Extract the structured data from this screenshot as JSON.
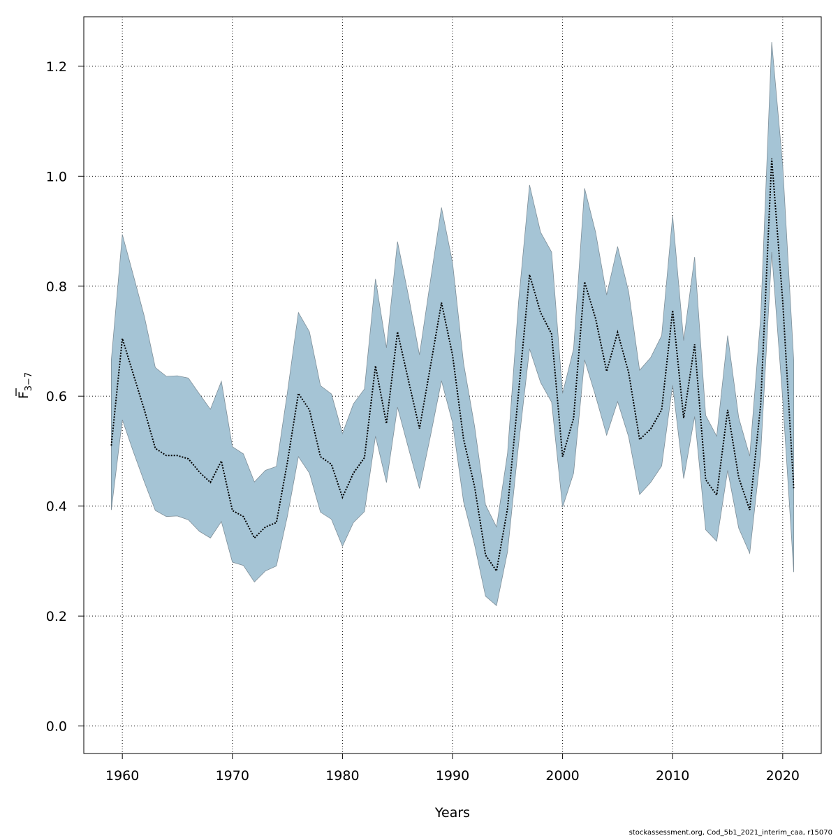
{
  "chart_data": {
    "type": "line",
    "xlabel": "Years",
    "ylabel_main": "F",
    "ylabel_sub": "3−7",
    "xlim": [
      1956.5,
      2023.5
    ],
    "ylim": [
      -0.05,
      1.29
    ],
    "x_ticks": [
      1960,
      1970,
      1980,
      1990,
      2000,
      2010,
      2020
    ],
    "y_ticks": [
      0.0,
      0.2,
      0.4,
      0.6,
      0.8,
      1.0,
      1.2
    ],
    "y_tick_labels": [
      "0.0",
      "0.2",
      "0.4",
      "0.6",
      "0.8",
      "1.0",
      "1.2"
    ],
    "grid": true,
    "colors": {
      "band_fill": "#a5c4d5",
      "band_stroke": "#7f8f99",
      "line": "#000000",
      "grid": "#000000"
    },
    "series": [
      {
        "x": [
          1959,
          1960,
          1961,
          1962,
          1963,
          1964,
          1965,
          1966,
          1967,
          1968,
          1969,
          1970,
          1971,
          1972,
          1973,
          1974,
          1975,
          1976,
          1977,
          1978,
          1979,
          1980,
          1981,
          1982,
          1983,
          1984,
          1985,
          1986,
          1987,
          1988,
          1989,
          1990,
          1991,
          1992,
          1993,
          1994,
          1995,
          1996,
          1997,
          1998,
          1999,
          2000,
          2001,
          2002,
          2003,
          2004,
          2005,
          2006,
          2007,
          2008,
          2009,
          2010,
          2011,
          2012,
          2013,
          2014,
          2015,
          2016,
          2017,
          2018,
          2019,
          2020,
          2021
        ],
        "estimate": [
          0.51,
          0.705,
          0.64,
          0.575,
          0.505,
          0.492,
          0.492,
          0.486,
          0.462,
          0.443,
          0.482,
          0.392,
          0.381,
          0.342,
          0.362,
          0.37,
          0.48,
          0.605,
          0.575,
          0.49,
          0.476,
          0.416,
          0.46,
          0.488,
          0.655,
          0.55,
          0.717,
          0.628,
          0.541,
          0.655,
          0.77,
          0.675,
          0.522,
          0.436,
          0.311,
          0.282,
          0.396,
          0.607,
          0.821,
          0.752,
          0.713,
          0.49,
          0.56,
          0.808,
          0.741,
          0.645,
          0.716,
          0.643,
          0.521,
          0.54,
          0.575,
          0.756,
          0.56,
          0.694,
          0.448,
          0.42,
          0.575,
          0.452,
          0.393,
          0.585,
          1.032,
          0.773,
          0.432
        ],
        "lower": [
          0.393,
          0.557,
          0.499,
          0.444,
          0.392,
          0.381,
          0.382,
          0.375,
          0.354,
          0.342,
          0.372,
          0.298,
          0.292,
          0.262,
          0.282,
          0.291,
          0.382,
          0.49,
          0.46,
          0.389,
          0.376,
          0.327,
          0.37,
          0.39,
          0.527,
          0.443,
          0.58,
          0.505,
          0.432,
          0.528,
          0.628,
          0.552,
          0.408,
          0.33,
          0.236,
          0.219,
          0.317,
          0.512,
          0.686,
          0.625,
          0.589,
          0.398,
          0.46,
          0.666,
          0.6,
          0.529,
          0.59,
          0.526,
          0.421,
          0.443,
          0.473,
          0.62,
          0.45,
          0.563,
          0.357,
          0.336,
          0.465,
          0.36,
          0.314,
          0.495,
          0.862,
          0.595,
          0.28
        ],
        "upper": [
          0.666,
          0.894,
          0.82,
          0.745,
          0.652,
          0.636,
          0.637,
          0.633,
          0.604,
          0.576,
          0.627,
          0.508,
          0.495,
          0.444,
          0.465,
          0.472,
          0.607,
          0.752,
          0.717,
          0.619,
          0.604,
          0.532,
          0.586,
          0.613,
          0.813,
          0.688,
          0.881,
          0.782,
          0.675,
          0.811,
          0.943,
          0.843,
          0.66,
          0.546,
          0.402,
          0.362,
          0.496,
          0.772,
          0.984,
          0.898,
          0.862,
          0.605,
          0.686,
          0.978,
          0.898,
          0.784,
          0.872,
          0.79,
          0.647,
          0.67,
          0.71,
          0.928,
          0.701,
          0.853,
          0.565,
          0.527,
          0.71,
          0.561,
          0.491,
          0.744,
          1.244,
          1.02,
          0.665
        ]
      }
    ]
  },
  "footer": {
    "credit": "stockassessment.org, Cod_5b1_2021_interim_caa, r15070"
  }
}
